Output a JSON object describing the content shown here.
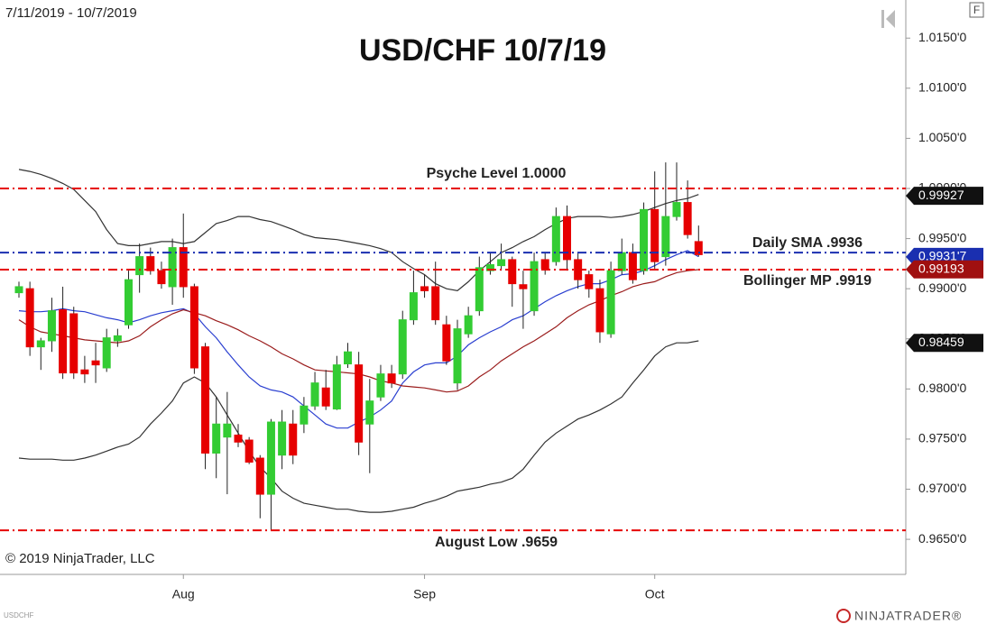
{
  "chart_data": {
    "type": "candlestick",
    "title": "USD/CHF 10/7/19",
    "subtitle": "7/11/2019 - 10/7/2019",
    "copyright": "© 2019 NinjaTrader, LLC",
    "symbol": "USDCHF",
    "brand": "NINJATRADER®",
    "button": "F",
    "categories": [
      null,
      null,
      null,
      null,
      null,
      null,
      null,
      null,
      null,
      null,
      null,
      null,
      null,
      null,
      null,
      "Aug",
      null,
      null,
      null,
      null,
      null,
      null,
      null,
      null,
      null,
      null,
      null,
      null,
      null,
      null,
      null,
      null,
      null,
      null,
      null,
      null,
      null,
      "Sep",
      null,
      null,
      null,
      null,
      null,
      null,
      null,
      null,
      null,
      null,
      null,
      null,
      null,
      null,
      null,
      null,
      null,
      null,
      null,
      null,
      "Oct",
      null,
      null,
      null,
      null
    ],
    "candles": {
      "open": [
        0.9896,
        0.99,
        0.9842,
        0.9848,
        0.9879,
        0.9875,
        0.9819,
        0.9828,
        0.9821,
        0.9848,
        0.9864,
        0.9914,
        0.9932,
        0.9918,
        0.9902,
        0.9941,
        0.9902,
        0.9842,
        0.9736,
        0.9752,
        0.9754,
        0.9749,
        0.9731,
        0.9695,
        0.9734,
        0.9765,
        0.9765,
        0.9783,
        0.9801,
        0.978,
        0.9825,
        0.9824,
        0.9765,
        0.9792,
        0.9815,
        0.9815,
        0.9869,
        0.9902,
        0.9902,
        0.9864,
        0.9806,
        0.9855,
        0.9878,
        0.9918,
        0.9923,
        0.9929,
        0.9904,
        0.9878,
        0.9929,
        0.9927,
        0.9972,
        0.9929,
        0.9914,
        0.99,
        0.9855,
        0.9918,
        0.9936,
        0.9918,
        0.9979,
        0.9932,
        0.9972,
        0.9986,
        0.9947
      ],
      "high": [
        0.9907,
        0.9907,
        0.9851,
        0.9891,
        0.9902,
        0.9882,
        0.9833,
        0.9846,
        0.986,
        0.986,
        0.9918,
        0.9945,
        0.9941,
        0.9927,
        0.995,
        0.9975,
        0.9905,
        0.9846,
        0.9792,
        0.9797,
        0.9765,
        0.9752,
        0.9734,
        0.977,
        0.9779,
        0.9779,
        0.9792,
        0.9817,
        0.9819,
        0.9833,
        0.9846,
        0.9837,
        0.981,
        0.9824,
        0.9824,
        0.9878,
        0.9918,
        0.9914,
        0.9927,
        0.9873,
        0.9869,
        0.9882,
        0.9932,
        0.9936,
        0.9945,
        0.9932,
        0.9918,
        0.9936,
        0.9936,
        0.9981,
        0.9983,
        0.9936,
        0.9918,
        0.9909,
        0.9927,
        0.995,
        0.9945,
        0.9986,
        1.0017,
        1.0026,
        1.0026,
        1.0008,
        0.9963
      ],
      "low": [
        0.9891,
        0.9833,
        0.9819,
        0.9837,
        0.981,
        0.981,
        0.9806,
        0.9806,
        0.9817,
        0.9842,
        0.986,
        0.9896,
        0.9914,
        0.99,
        0.9884,
        0.9891,
        0.9815,
        0.972,
        0.9711,
        0.9695,
        0.9742,
        0.9725,
        0.9671,
        0.9659,
        0.972,
        0.9725,
        0.9756,
        0.9779,
        0.9779,
        0.9779,
        0.9821,
        0.9734,
        0.9716,
        0.9788,
        0.9801,
        0.981,
        0.9864,
        0.9891,
        0.9864,
        0.9824,
        0.9799,
        0.9851,
        0.9873,
        0.9914,
        0.9918,
        0.9882,
        0.986,
        0.9873,
        0.9914,
        0.9923,
        0.9918,
        0.99,
        0.9891,
        0.9846,
        0.9851,
        0.9914,
        0.9905,
        0.9914,
        0.992,
        0.9923,
        0.9968,
        0.995,
        0.9932
      ],
      "close": [
        0.9902,
        0.9842,
        0.9848,
        0.9878,
        0.9816,
        0.9816,
        0.9815,
        0.9824,
        0.9851,
        0.9853,
        0.9909,
        0.9932,
        0.9918,
        0.9905,
        0.9941,
        0.9902,
        0.9821,
        0.9736,
        0.9765,
        0.9765,
        0.9747,
        0.9727,
        0.9695,
        0.9767,
        0.9767,
        0.9734,
        0.9783,
        0.9806,
        0.9783,
        0.9824,
        0.9837,
        0.9747,
        0.9788,
        0.9815,
        0.9806,
        0.9869,
        0.9896,
        0.9898,
        0.9869,
        0.9828,
        0.986,
        0.9873,
        0.9921,
        0.9924,
        0.9929,
        0.9905,
        0.99,
        0.9927,
        0.992,
        0.9972,
        0.9929,
        0.9909,
        0.99,
        0.9857,
        0.9918,
        0.9936,
        0.9909,
        0.9979,
        0.9927,
        0.9972,
        0.9986,
        0.9954,
        0.9934
      ]
    },
    "up_color": "#33cc33",
    "down_color": "#e60000",
    "lines": [
      {
        "color": "#333333",
        "values": [
          1.0019,
          1.0017,
          1.0014,
          1.001,
          1.0005,
          0.9999,
          0.9988,
          0.9977,
          0.9959,
          0.9945,
          0.9943,
          0.9943,
          0.9945,
          0.9947,
          0.9947,
          0.9945,
          0.9947,
          0.9956,
          0.9965,
          0.9968,
          0.9972,
          0.9972,
          0.9969,
          0.9967,
          0.9963,
          0.9959,
          0.9954,
          0.9951,
          0.995,
          0.9949,
          0.9947,
          0.9945,
          0.9943,
          0.994,
          0.9936,
          0.9927,
          0.992,
          0.9914,
          0.9905,
          0.99,
          0.9898,
          0.9907,
          0.9918,
          0.9927,
          0.9936,
          0.9941,
          0.9947,
          0.9952,
          0.9959,
          0.9965,
          0.997,
          0.9972,
          0.9972,
          0.9972,
          0.9971,
          0.9972,
          0.9974,
          0.9977,
          0.9981,
          0.9985,
          0.9988,
          0.999,
          0.9994
        ]
      },
      {
        "color": "#333333",
        "values": [
          0.9731,
          0.973,
          0.973,
          0.973,
          0.9729,
          0.9729,
          0.9731,
          0.9734,
          0.9738,
          0.9742,
          0.9745,
          0.9752,
          0.9765,
          0.9776,
          0.9788,
          0.9806,
          0.9812,
          0.9806,
          0.9792,
          0.9774,
          0.9756,
          0.9738,
          0.9722,
          0.9711,
          0.9698,
          0.9691,
          0.9686,
          0.9684,
          0.9682,
          0.968,
          0.968,
          0.9678,
          0.9677,
          0.9677,
          0.9678,
          0.968,
          0.9682,
          0.9686,
          0.9689,
          0.9693,
          0.9698,
          0.97,
          0.9702,
          0.9705,
          0.9707,
          0.9711,
          0.972,
          0.9734,
          0.9747,
          0.9756,
          0.9763,
          0.977,
          0.9774,
          0.9779,
          0.9785,
          0.9792,
          0.9806,
          0.9819,
          0.9833,
          0.9842,
          0.9846,
          0.9846,
          0.9848
        ]
      },
      {
        "color": "#2a3fd0",
        "values": [
          0.9878,
          0.9877,
          0.9877,
          0.9878,
          0.988,
          0.9878,
          0.9877,
          0.9874,
          0.9871,
          0.9869,
          0.9866,
          0.9869,
          0.9873,
          0.9876,
          0.9878,
          0.988,
          0.9875,
          0.9862,
          0.9851,
          0.9837,
          0.9824,
          0.9812,
          0.9803,
          0.9799,
          0.9797,
          0.9792,
          0.9783,
          0.9774,
          0.9765,
          0.9761,
          0.9761,
          0.9767,
          0.9772,
          0.9779,
          0.9788,
          0.9806,
          0.9817,
          0.9824,
          0.9826,
          0.9826,
          0.9833,
          0.9844,
          0.9851,
          0.9857,
          0.9862,
          0.9869,
          0.9873,
          0.988,
          0.9887,
          0.9893,
          0.9898,
          0.9902,
          0.9905,
          0.9905,
          0.9909,
          0.9914,
          0.9915,
          0.9918,
          0.9923,
          0.9929,
          0.9934,
          0.9938,
          0.9932
        ]
      },
      {
        "color": "#9a1c1c",
        "values": [
          0.9869,
          0.9862,
          0.9857,
          0.9855,
          0.9853,
          0.9851,
          0.9849,
          0.9848,
          0.9847,
          0.9846,
          0.9848,
          0.9853,
          0.9862,
          0.9869,
          0.9875,
          0.9879,
          0.9876,
          0.9873,
          0.9868,
          0.9864,
          0.9859,
          0.9853,
          0.9848,
          0.9842,
          0.9835,
          0.983,
          0.9824,
          0.9819,
          0.9818,
          0.9817,
          0.9816,
          0.9815,
          0.9812,
          0.9808,
          0.9806,
          0.9803,
          0.9802,
          0.9801,
          0.9799,
          0.9797,
          0.9798,
          0.9803,
          0.9812,
          0.9819,
          0.9828,
          0.9835,
          0.9842,
          0.9848,
          0.9855,
          0.9862,
          0.9871,
          0.9878,
          0.9884,
          0.9888,
          0.9893,
          0.9897,
          0.9902,
          0.9905,
          0.9907,
          0.9912,
          0.9916,
          0.9918,
          0.9919
        ]
      }
    ],
    "hlines": [
      {
        "value": 1.0,
        "label": "Psyche Level 1.0000",
        "color": "#e60000"
      },
      {
        "value": 0.9936,
        "label": "Daily SMA .9936",
        "color": "#1a2fb0"
      },
      {
        "value": 0.9919,
        "label": "Bollinger MP .9919",
        "color": "#e60000"
      },
      {
        "value": 0.9659,
        "label": "August Low .9659",
        "color": "#e60000"
      }
    ],
    "price_markers": [
      {
        "value": 0.99927,
        "color": "#111111"
      },
      {
        "value": {
          "value": 0.99317,
          "label": "0.9931'7"
        },
        "color": "#1a2fb0"
      },
      {
        "value": 0.99193,
        "color": "#a01010"
      },
      {
        "value": 0.98459,
        "color": "#111111"
      }
    ],
    "ylim": [
      0.9615,
      1.0188
    ],
    "yticks": [
      {
        "value": 1.015,
        "label": "1.0150'0"
      },
      {
        "value": 1.01,
        "label": "1.0100'0"
      },
      {
        "value": 1.005,
        "label": "1.0050'0"
      },
      {
        "value": 1.0,
        "label": "1.0000'0"
      },
      {
        "value": 0.995,
        "label": "0.9950'0"
      },
      {
        "value": 0.99,
        "label": "0.9900'0"
      },
      {
        "value": 0.985,
        "label": "0.9850'0"
      },
      {
        "value": 0.98,
        "label": "0.9800'0"
      },
      {
        "value": 0.975,
        "label": "0.9750'0"
      },
      {
        "value": 0.97,
        "label": "0.9700'0"
      },
      {
        "value": 0.965,
        "label": "0.9650'0"
      }
    ]
  }
}
